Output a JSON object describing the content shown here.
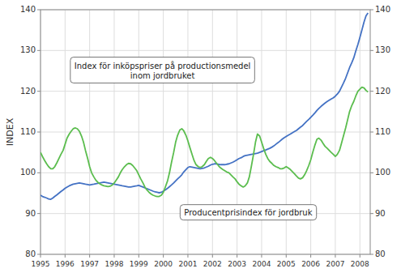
{
  "chart_data": {
    "type": "line",
    "y_label": "INDEX",
    "x": [
      1995.0,
      1995.08,
      1995.17,
      1995.25,
      1995.33,
      1995.42,
      1995.5,
      1995.58,
      1995.67,
      1995.75,
      1995.83,
      1995.92,
      1996.0,
      1996.08,
      1996.17,
      1996.25,
      1996.33,
      1996.42,
      1996.5,
      1996.58,
      1996.67,
      1996.75,
      1996.83,
      1996.92,
      1997.0,
      1997.08,
      1997.17,
      1997.25,
      1997.33,
      1997.42,
      1997.5,
      1997.58,
      1997.67,
      1997.75,
      1997.83,
      1997.92,
      1998.0,
      1998.08,
      1998.17,
      1998.25,
      1998.33,
      1998.42,
      1998.5,
      1998.58,
      1998.67,
      1998.75,
      1998.83,
      1998.92,
      1999.0,
      1999.08,
      1999.17,
      1999.25,
      1999.33,
      1999.42,
      1999.5,
      1999.58,
      1999.67,
      1999.75,
      1999.83,
      1999.92,
      2000.0,
      2000.08,
      2000.17,
      2000.25,
      2000.33,
      2000.42,
      2000.5,
      2000.58,
      2000.67,
      2000.75,
      2000.83,
      2000.92,
      2001.0,
      2001.08,
      2001.17,
      2001.25,
      2001.33,
      2001.42,
      2001.5,
      2001.58,
      2001.67,
      2001.75,
      2001.83,
      2001.92,
      2002.0,
      2002.08,
      2002.17,
      2002.25,
      2002.33,
      2002.42,
      2002.5,
      2002.58,
      2002.67,
      2002.75,
      2002.83,
      2002.92,
      2003.0,
      2003.08,
      2003.17,
      2003.25,
      2003.33,
      2003.42,
      2003.5,
      2003.58,
      2003.67,
      2003.75,
      2003.83,
      2003.92,
      2004.0,
      2004.08,
      2004.17,
      2004.25,
      2004.33,
      2004.42,
      2004.5,
      2004.58,
      2004.67,
      2004.75,
      2004.83,
      2004.92,
      2005.0,
      2005.08,
      2005.17,
      2005.25,
      2005.33,
      2005.42,
      2005.5,
      2005.58,
      2005.67,
      2005.75,
      2005.83,
      2005.92,
      2006.0,
      2006.08,
      2006.17,
      2006.25,
      2006.33,
      2006.42,
      2006.5,
      2006.58,
      2006.67,
      2006.75,
      2006.83,
      2006.92,
      2007.0,
      2007.08,
      2007.17,
      2007.25,
      2007.33,
      2007.42,
      2007.5,
      2007.58,
      2007.67,
      2007.75,
      2007.83,
      2007.92,
      2008.0,
      2008.08,
      2008.17,
      2008.25,
      2008.33
    ],
    "series": [
      {
        "color": "#4472C4",
        "values": [
          94.5,
          94.2,
          94.0,
          93.8,
          93.6,
          93.5,
          93.8,
          94.2,
          94.6,
          95.0,
          95.4,
          95.8,
          96.2,
          96.5,
          96.8,
          97.0,
          97.2,
          97.3,
          97.4,
          97.5,
          97.4,
          97.3,
          97.2,
          97.1,
          97.0,
          97.1,
          97.2,
          97.3,
          97.4,
          97.5,
          97.6,
          97.7,
          97.6,
          97.5,
          97.4,
          97.3,
          97.2,
          97.1,
          97.0,
          96.9,
          96.8,
          96.7,
          96.6,
          96.5,
          96.5,
          96.6,
          96.7,
          96.8,
          96.9,
          96.7,
          96.5,
          96.3,
          96.1,
          95.9,
          95.7,
          95.5,
          95.3,
          95.2,
          95.1,
          95.2,
          95.5,
          95.8,
          96.2,
          96.6,
          97.0,
          97.5,
          98.0,
          98.5,
          99.0,
          99.5,
          100.2,
          100.8,
          101.3,
          101.5,
          101.4,
          101.3,
          101.2,
          101.1,
          101.0,
          101.1,
          101.2,
          101.4,
          101.6,
          101.9,
          102.1,
          102.2,
          102.2,
          102.1,
          102.0,
          102.0,
          102.0,
          102.1,
          102.2,
          102.4,
          102.6,
          102.9,
          103.2,
          103.5,
          103.7,
          104.0,
          104.2,
          104.3,
          104.4,
          104.5,
          104.6,
          104.7,
          104.8,
          105.0,
          105.2,
          105.4,
          105.6,
          105.8,
          106.0,
          106.3,
          106.6,
          107.0,
          107.4,
          107.8,
          108.2,
          108.6,
          108.9,
          109.2,
          109.5,
          109.8,
          110.1,
          110.4,
          110.8,
          111.2,
          111.6,
          112.1,
          112.6,
          113.1,
          113.6,
          114.1,
          114.7,
          115.3,
          115.8,
          116.3,
          116.7,
          117.1,
          117.5,
          117.8,
          118.1,
          118.4,
          118.8,
          119.3,
          120.0,
          121.0,
          122.0,
          123.2,
          124.5,
          125.8,
          127.0,
          128.2,
          129.8,
          131.5,
          133.2,
          135.0,
          137.0,
          138.5,
          139.2
        ]
      },
      {
        "color": "#5BBD4E",
        "values": [
          105.0,
          104.0,
          103.0,
          102.2,
          101.5,
          101.0,
          101.0,
          101.5,
          102.5,
          103.5,
          104.5,
          105.5,
          107.0,
          108.5,
          109.5,
          110.2,
          110.8,
          111.0,
          110.8,
          110.2,
          109.0,
          107.5,
          105.5,
          103.5,
          101.5,
          100.0,
          99.0,
          98.2,
          97.7,
          97.3,
          97.0,
          96.8,
          96.7,
          96.6,
          96.7,
          97.0,
          97.5,
          98.2,
          99.0,
          100.0,
          100.8,
          101.5,
          102.0,
          102.3,
          102.2,
          101.8,
          101.2,
          100.5,
          99.5,
          98.5,
          97.5,
          96.5,
          95.8,
          95.2,
          94.8,
          94.5,
          94.3,
          94.2,
          94.2,
          94.5,
          95.2,
          96.5,
          98.0,
          100.0,
          102.5,
          105.0,
          107.5,
          109.2,
          110.5,
          110.8,
          110.3,
          109.2,
          107.8,
          106.2,
          104.5,
          103.0,
          102.0,
          101.5,
          101.3,
          101.5,
          102.0,
          102.8,
          103.5,
          103.8,
          103.5,
          103.0,
          102.3,
          101.7,
          101.2,
          100.8,
          100.5,
          100.2,
          100.0,
          99.5,
          99.0,
          98.5,
          97.8,
          97.2,
          96.8,
          96.5,
          96.8,
          97.5,
          99.0,
          101.5,
          104.5,
          107.5,
          109.5,
          109.0,
          107.5,
          106.0,
          104.5,
          103.5,
          102.8,
          102.3,
          101.8,
          101.5,
          101.3,
          101.0,
          101.0,
          101.2,
          101.5,
          101.2,
          100.8,
          100.3,
          99.8,
          99.2,
          98.7,
          98.5,
          98.8,
          99.5,
          100.5,
          101.8,
          103.2,
          105.0,
          106.8,
          108.2,
          108.5,
          108.0,
          107.2,
          106.5,
          106.0,
          105.5,
          105.0,
          104.5,
          104.0,
          104.5,
          105.5,
          107.2,
          109.0,
          111.0,
          113.0,
          115.0,
          116.5,
          117.5,
          118.8,
          120.0,
          120.5,
          121.0,
          120.8,
          120.2,
          119.8
        ]
      }
    ],
    "annotations": [
      "Index för inköpspriser på productionsmedel\ninom jordbruket",
      "Producentprisindex för jordbruk"
    ],
    "xlim": [
      1995.0,
      2008.42
    ],
    "xticks": [
      1995,
      1996,
      1997,
      1998,
      1999,
      2000,
      2001,
      2002,
      2003,
      2004,
      2005,
      2006,
      2007,
      2008
    ],
    "ylim": [
      80,
      140
    ],
    "yticks": [
      80,
      90,
      100,
      110,
      120,
      130,
      140
    ],
    "y2lim": [
      80,
      140
    ],
    "y2ticks": [
      80,
      90,
      100,
      110,
      120,
      130,
      140
    ],
    "grid": true
  }
}
